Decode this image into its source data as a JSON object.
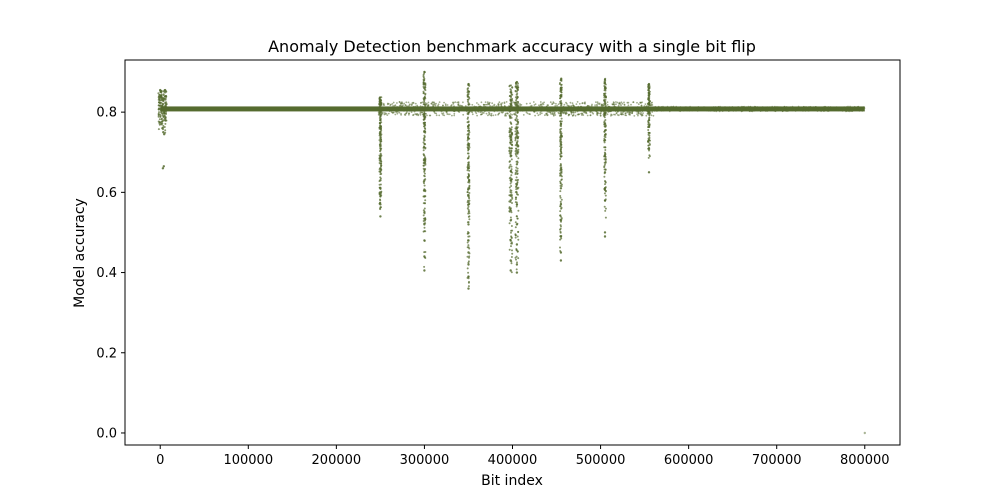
{
  "chart_data": {
    "type": "scatter",
    "title": "Anomaly Detection benchmark accuracy with a single bit flip",
    "xlabel": "Bit index",
    "ylabel": "Model accuracy",
    "xlim": [
      -40000,
      840000
    ],
    "ylim": [
      -0.03,
      0.93
    ],
    "x_ticks": [
      0,
      100000,
      200000,
      300000,
      400000,
      500000,
      600000,
      700000,
      800000
    ],
    "y_ticks": [
      0.0,
      0.2,
      0.4,
      0.6,
      0.8
    ],
    "x_tick_labels": [
      "0",
      "100000",
      "200000",
      "300000",
      "400000",
      "500000",
      "600000",
      "700000",
      "800000"
    ],
    "y_tick_labels": [
      "0.0",
      "0.2",
      "0.4",
      "0.6",
      "0.8"
    ],
    "grid": false,
    "legend": "none",
    "marker_color": "#556b2f",
    "baseline_accuracy": 0.808,
    "baseline_x_range": [
      0,
      800000
    ],
    "series": [
      {
        "points": [
          {
            "x": 0,
            "y": 0.855
          },
          {
            "x": 500,
            "y": 0.85
          },
          {
            "x": 1000,
            "y": 0.84
          },
          {
            "x": 2000,
            "y": 0.83
          },
          {
            "x": 3000,
            "y": 0.82
          },
          {
            "x": 4000,
            "y": 0.8
          },
          {
            "x": 5000,
            "y": 0.79
          },
          {
            "x": 6000,
            "y": 0.78
          },
          {
            "x": 1500,
            "y": 0.77
          },
          {
            "x": 2500,
            "y": 0.76
          },
          {
            "x": 3500,
            "y": 0.75
          },
          {
            "x": 4500,
            "y": 0.745
          },
          {
            "x": 5500,
            "y": 0.855
          },
          {
            "x": 6500,
            "y": 0.84
          },
          {
            "x": 7000,
            "y": 0.82
          },
          {
            "x": 3000,
            "y": 0.66
          },
          {
            "x": 4000,
            "y": 0.665
          },
          {
            "x": 250000,
            "y": 0.83
          },
          {
            "x": 250000,
            "y": 0.78
          },
          {
            "x": 250000,
            "y": 0.75
          },
          {
            "x": 250000,
            "y": 0.72
          },
          {
            "x": 250000,
            "y": 0.69
          },
          {
            "x": 250000,
            "y": 0.66
          },
          {
            "x": 250000,
            "y": 0.63
          },
          {
            "x": 250000,
            "y": 0.61
          },
          {
            "x": 250000,
            "y": 0.59
          },
          {
            "x": 250000,
            "y": 0.57
          },
          {
            "x": 250000,
            "y": 0.54
          },
          {
            "x": 300000,
            "y": 0.9
          },
          {
            "x": 300000,
            "y": 0.86
          },
          {
            "x": 300000,
            "y": 0.77
          },
          {
            "x": 300000,
            "y": 0.73
          },
          {
            "x": 300000,
            "y": 0.68
          },
          {
            "x": 300000,
            "y": 0.63
          },
          {
            "x": 300000,
            "y": 0.59
          },
          {
            "x": 300000,
            "y": 0.55
          },
          {
            "x": 300000,
            "y": 0.52
          },
          {
            "x": 300000,
            "y": 0.48
          },
          {
            "x": 300000,
            "y": 0.44
          },
          {
            "x": 300000,
            "y": 0.405
          },
          {
            "x": 350000,
            "y": 0.87
          },
          {
            "x": 350000,
            "y": 0.76
          },
          {
            "x": 350000,
            "y": 0.72
          },
          {
            "x": 350000,
            "y": 0.66
          },
          {
            "x": 350000,
            "y": 0.61
          },
          {
            "x": 350000,
            "y": 0.57
          },
          {
            "x": 350000,
            "y": 0.52
          },
          {
            "x": 350000,
            "y": 0.48
          },
          {
            "x": 350000,
            "y": 0.45
          },
          {
            "x": 350000,
            "y": 0.42
          },
          {
            "x": 350000,
            "y": 0.39
          },
          {
            "x": 350000,
            "y": 0.36
          },
          {
            "x": 398000,
            "y": 0.85
          },
          {
            "x": 398000,
            "y": 0.74
          },
          {
            "x": 398000,
            "y": 0.69
          },
          {
            "x": 398000,
            "y": 0.63
          },
          {
            "x": 398000,
            "y": 0.58
          },
          {
            "x": 398000,
            "y": 0.53
          },
          {
            "x": 398000,
            "y": 0.48
          },
          {
            "x": 398000,
            "y": 0.43
          },
          {
            "x": 398000,
            "y": 0.405
          },
          {
            "x": 405000,
            "y": 0.875
          },
          {
            "x": 405000,
            "y": 0.86
          },
          {
            "x": 405000,
            "y": 0.76
          },
          {
            "x": 405000,
            "y": 0.72
          },
          {
            "x": 405000,
            "y": 0.67
          },
          {
            "x": 405000,
            "y": 0.62
          },
          {
            "x": 405000,
            "y": 0.57
          },
          {
            "x": 405000,
            "y": 0.52
          },
          {
            "x": 405000,
            "y": 0.47
          },
          {
            "x": 405000,
            "y": 0.42
          },
          {
            "x": 405000,
            "y": 0.4
          },
          {
            "x": 455000,
            "y": 0.88
          },
          {
            "x": 455000,
            "y": 0.86
          },
          {
            "x": 455000,
            "y": 0.84
          },
          {
            "x": 455000,
            "y": 0.77
          },
          {
            "x": 455000,
            "y": 0.72
          },
          {
            "x": 455000,
            "y": 0.66
          },
          {
            "x": 455000,
            "y": 0.61
          },
          {
            "x": 455000,
            "y": 0.57
          },
          {
            "x": 455000,
            "y": 0.53
          },
          {
            "x": 455000,
            "y": 0.49
          },
          {
            "x": 455000,
            "y": 0.45
          },
          {
            "x": 455000,
            "y": 0.43
          },
          {
            "x": 505000,
            "y": 0.88
          },
          {
            "x": 505000,
            "y": 0.86
          },
          {
            "x": 505000,
            "y": 0.84
          },
          {
            "x": 505000,
            "y": 0.77
          },
          {
            "x": 505000,
            "y": 0.73
          },
          {
            "x": 505000,
            "y": 0.69
          },
          {
            "x": 505000,
            "y": 0.65
          },
          {
            "x": 505000,
            "y": 0.61
          },
          {
            "x": 505000,
            "y": 0.58
          },
          {
            "x": 505000,
            "y": 0.5
          },
          {
            "x": 505000,
            "y": 0.49
          },
          {
            "x": 555000,
            "y": 0.87
          },
          {
            "x": 555000,
            "y": 0.86
          },
          {
            "x": 555000,
            "y": 0.84
          },
          {
            "x": 555000,
            "y": 0.83
          },
          {
            "x": 555000,
            "y": 0.78
          },
          {
            "x": 555000,
            "y": 0.73
          },
          {
            "x": 555000,
            "y": 0.71
          },
          {
            "x": 555000,
            "y": 0.65
          },
          {
            "x": 800000,
            "y": 0.0
          }
        ]
      }
    ]
  }
}
